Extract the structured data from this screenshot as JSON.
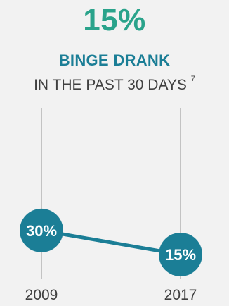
{
  "headline": {
    "value": "15%",
    "color": "#2aa38b"
  },
  "title": "BINGE DRANK",
  "subtitle": "IN THE PAST 30 DAYS",
  "footnote": "7",
  "chart_data": {
    "type": "line",
    "title": "BINGE DRANK",
    "subtitle": "IN THE PAST 30 DAYS",
    "x": [
      "2009",
      "2017"
    ],
    "series": [
      {
        "values": [
          30,
          15
        ],
        "labels": [
          "30%",
          "15%"
        ],
        "color": "#1b7e96"
      }
    ],
    "xlabel": "",
    "ylabel": "",
    "grid": false,
    "legend": "none"
  }
}
